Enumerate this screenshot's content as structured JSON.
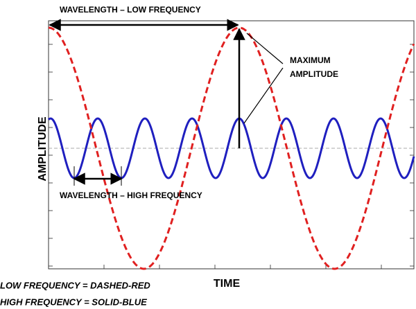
{
  "annotations": {
    "low_wavelength": "WAVELENGTH – LOW FREQUENCY",
    "max_amplitude": [
      "MAXIMUM",
      "AMPLITUDE"
    ],
    "high_wavelength": "WAVELENGTH – HIGH FREQUENCY"
  },
  "axes": {
    "y_label": "AMPLITUDE",
    "x_label": "TIME"
  },
  "legend": [
    "LOW FREQUENCY = DASHED-RED",
    "HIGH FREQUENCY = SOLID-BLUE"
  ]
}
